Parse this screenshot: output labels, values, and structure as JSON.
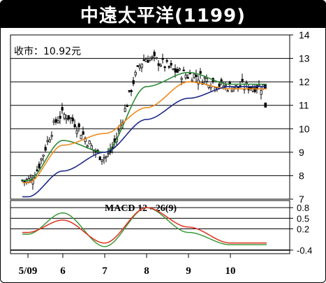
{
  "header": {
    "title": "中遠太平洋(1199)"
  },
  "colors": {
    "ma_green": "#2e8b3a",
    "ma_orange": "#f08a1c",
    "ma_blue": "#1f2a8c",
    "macd_green": "#3c9a3c",
    "macd_red": "#e0301e"
  },
  "chart_data": [
    {
      "type": "line",
      "title": "中遠太平洋(1199)",
      "annotation": "收市：10.92元",
      "ylim": [
        7,
        14
      ],
      "yticks": [
        "14",
        "13",
        "12",
        "11",
        "10",
        "9",
        "8",
        "7"
      ],
      "xtick_labels": [
        "5/09",
        "6",
        "7",
        "8",
        "9",
        "10"
      ],
      "x": [
        "5/09",
        "6",
        "7",
        "8",
        "9",
        "10"
      ],
      "series": [
        {
          "values": [
            7.8,
            10.6,
            8.8,
            13.0,
            12.3,
            11.8
          ]
        },
        {
          "values": [
            7.8,
            9.5,
            9.0,
            11.8,
            12.4,
            11.9
          ]
        },
        {
          "values": [
            7.7,
            9.3,
            9.8,
            10.9,
            12.0,
            11.7
          ]
        },
        {
          "values": [
            7.1,
            8.2,
            9.0,
            10.4,
            11.3,
            11.8
          ]
        }
      ],
      "close": 10.92
    },
    {
      "type": "line",
      "title": "MACD 12 - 26(9)",
      "yticks": [
        "0.8",
        "0.5",
        "0.2",
        "-0.4"
      ],
      "x": [
        "5/09",
        "6",
        "7",
        "8",
        "9",
        "10"
      ],
      "series": [
        {
          "values": [
            0.05,
            0.65,
            -0.3,
            0.8,
            0.1,
            -0.25
          ]
        },
        {
          "values": [
            0.1,
            0.45,
            -0.2,
            0.8,
            0.25,
            -0.2
          ]
        }
      ]
    }
  ]
}
